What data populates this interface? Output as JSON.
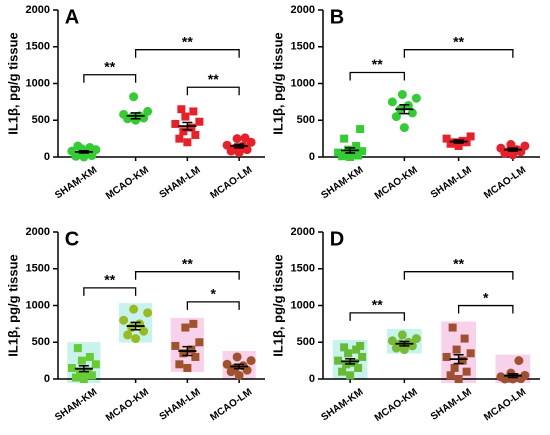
{
  "chart_data": [
    {
      "type": "dot",
      "panel": "A",
      "ylabel": "IL1β, pg/g tissue",
      "categories": [
        "SHAM-KM",
        "MCAO-KM",
        "SHAM-LM",
        "MCAO-LM"
      ],
      "colors": [
        "#33cc33",
        "#33cc33",
        "#e8202a",
        "#e8202a"
      ],
      "markers": [
        "circle",
        "circle",
        "square",
        "circle"
      ],
      "values": [
        [
          0,
          10,
          20,
          40,
          60,
          80,
          100,
          110,
          130,
          150
        ],
        [
          500,
          520,
          530,
          540,
          560,
          580,
          620,
          820
        ],
        [
          200,
          250,
          300,
          350,
          400,
          450,
          480,
          550,
          620,
          650
        ],
        [
          60,
          80,
          100,
          120,
          150,
          160,
          200,
          250,
          260
        ]
      ],
      "means": [
        70,
        560,
        420,
        150
      ],
      "errors": [
        15,
        40,
        50,
        25
      ],
      "brackets": [
        {
          "from": 0,
          "to": 1,
          "label": "**"
        },
        {
          "from": 1,
          "to": 3,
          "label": "**"
        },
        {
          "from": 2,
          "to": 3,
          "label": "**"
        }
      ],
      "ylim": [
        0,
        2000
      ],
      "yticks": [
        0,
        500,
        1000,
        1500,
        2000
      ],
      "shaded": false
    },
    {
      "type": "dot",
      "panel": "B",
      "ylabel": "IL1β, pg/g tissue",
      "categories": [
        "SHAM-KM",
        "MCAO-KM",
        "SHAM-LM",
        "MCAO-LM"
      ],
      "colors": [
        "#33cc33",
        "#33cc33",
        "#e8202a",
        "#e8202a"
      ],
      "markers": [
        "square",
        "circle",
        "square",
        "circle"
      ],
      "values": [
        [
          0,
          10,
          20,
          30,
          50,
          60,
          80,
          100,
          150,
          250,
          380
        ],
        [
          400,
          550,
          600,
          650,
          700,
          750,
          800,
          850
        ],
        [
          150,
          180,
          200,
          200,
          220,
          250,
          280
        ],
        [
          30,
          50,
          70,
          80,
          100,
          120,
          150,
          170
        ]
      ],
      "means": [
        90,
        650,
        210,
        100
      ],
      "errors": [
        35,
        60,
        20,
        20
      ],
      "brackets": [
        {
          "from": 0,
          "to": 1,
          "label": "**"
        },
        {
          "from": 1,
          "to": 3,
          "label": "**"
        }
      ],
      "ylim": [
        0,
        2000
      ],
      "yticks": [
        0,
        500,
        1000,
        1500,
        2000
      ],
      "shaded": false
    },
    {
      "type": "dot",
      "panel": "C",
      "ylabel": "IL1β, pg/g tissue",
      "categories": [
        "SHAM-KM",
        "MCAO-KM",
        "SHAM-LM",
        "MCAO-LM"
      ],
      "colors": [
        "#66cc33",
        "#99bb22",
        "#a0522d",
        "#a0522d"
      ],
      "markers": [
        "square",
        "circle",
        "square",
        "circle"
      ],
      "values": [
        [
          0,
          20,
          50,
          80,
          100,
          150,
          200,
          250,
          300,
          420
        ],
        [
          550,
          600,
          650,
          700,
          750,
          800,
          900,
          950
        ],
        [
          150,
          200,
          300,
          350,
          400,
          450,
          500,
          700,
          750
        ],
        [
          50,
          100,
          120,
          150,
          180,
          200,
          250,
          300
        ]
      ],
      "means": [
        140,
        720,
        380,
        170
      ],
      "errors": [
        40,
        50,
        60,
        30
      ],
      "brackets": [
        {
          "from": 0,
          "to": 1,
          "label": "**"
        },
        {
          "from": 1,
          "to": 3,
          "label": "**"
        },
        {
          "from": 2,
          "to": 3,
          "label": "*"
        }
      ],
      "ylim": [
        0,
        2000
      ],
      "yticks": [
        0,
        500,
        1000,
        1500,
        2000
      ],
      "shaded": true,
      "box_colors": [
        "#c8f2ee",
        "#c8f2ee",
        "#f8d2ea",
        "#f8d2ea"
      ]
    },
    {
      "type": "dot",
      "panel": "D",
      "ylabel": "IL1β, pg/g tissue",
      "categories": [
        "SHAM-KM",
        "MCAO-KM",
        "SHAM-LM",
        "MCAO-LM"
      ],
      "colors": [
        "#66bb33",
        "#77bb33",
        "#a05030",
        "#a05030"
      ],
      "markers": [
        "square",
        "circle",
        "square",
        "circle"
      ],
      "values": [
        [
          50,
          100,
          150,
          200,
          220,
          250,
          300,
          350,
          400,
          430,
          450
        ],
        [
          400,
          420,
          450,
          480,
          500,
          520,
          550,
          600
        ],
        [
          0,
          50,
          100,
          150,
          250,
          300,
          350,
          400,
          550,
          700
        ],
        [
          0,
          0,
          5,
          10,
          20,
          30,
          50,
          80,
          250
        ]
      ],
      "means": [
        240,
        480,
        270,
        45
      ],
      "errors": [
        35,
        30,
        60,
        25
      ],
      "brackets": [
        {
          "from": 0,
          "to": 1,
          "label": "**"
        },
        {
          "from": 1,
          "to": 3,
          "label": "**"
        },
        {
          "from": 2,
          "to": 3,
          "label": "*"
        }
      ],
      "ylim": [
        0,
        2000
      ],
      "yticks": [
        0,
        500,
        1000,
        1500,
        2000
      ],
      "shaded": true,
      "box_colors": [
        "#c8f2ee",
        "#c8f2ee",
        "#f8d2ea",
        "#f8d2ea"
      ]
    }
  ]
}
